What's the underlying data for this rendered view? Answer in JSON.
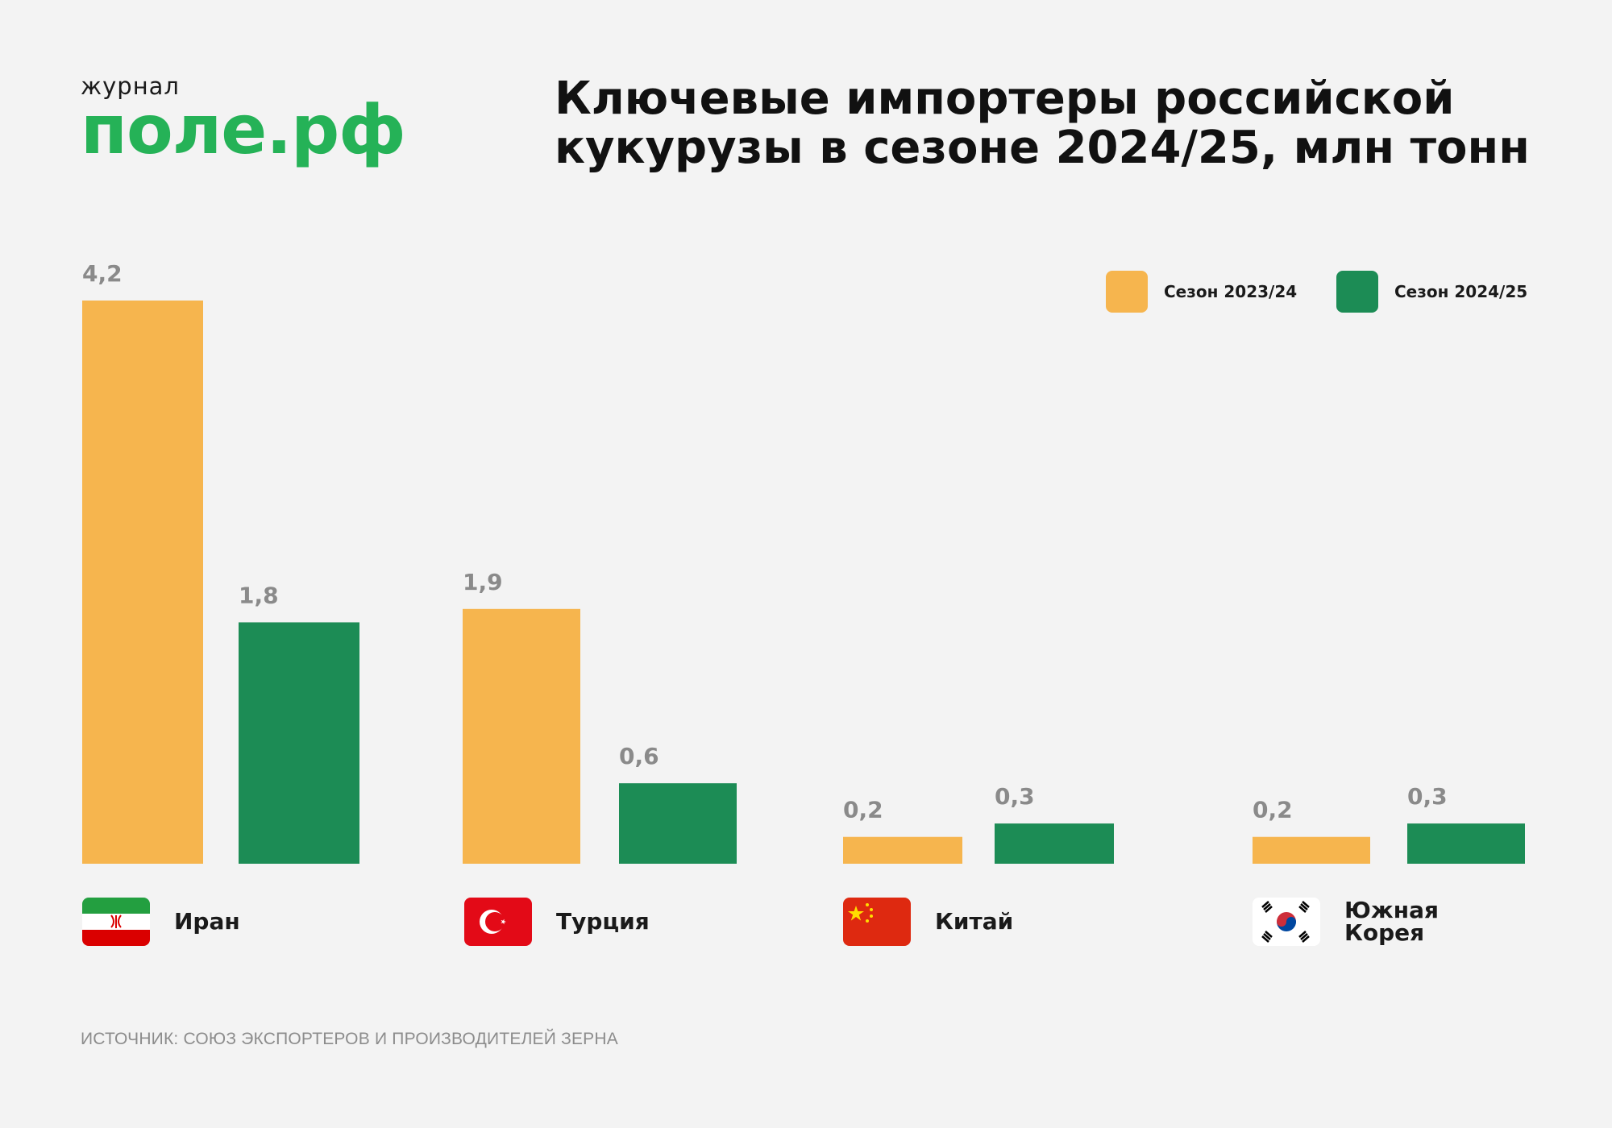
{
  "logo": {
    "small": "журнал",
    "big": "поле.рф"
  },
  "title_line1": "Ключевые импортеры российской",
  "title_line2": "кукурузы в сезоне 2024/25, млн тонн",
  "legend": [
    {
      "label": "Сезон 2023/24",
      "color": "#f6b54e"
    },
    {
      "label": "Сезон 2024/25",
      "color": "#1c8c55"
    }
  ],
  "countries": [
    {
      "name": "Иран",
      "flag": "iran-flag-icon"
    },
    {
      "name": "Турция",
      "flag": "turkey-flag-icon"
    },
    {
      "name": "Китай",
      "flag": "china-flag-icon"
    },
    {
      "name": "Южная Корея",
      "flag": "south-korea-flag-icon"
    }
  ],
  "source": "ИСТОЧНИК: СОЮЗ ЭКСПОРТЕРОВ И ПРОИЗВОДИТЕЛЕЙ ЗЕРНА",
  "chart_data": {
    "type": "bar",
    "title": "Ключевые импортеры российской кукурузы в сезоне 2024/25, млн тонн",
    "categories": [
      "Иран",
      "Турция",
      "Китай",
      "Южная Корея"
    ],
    "series": [
      {
        "name": "Сезон 2023/24",
        "values": [
          4.2,
          1.9,
          0.2,
          0.2
        ],
        "labels": [
          "4,2",
          "1,9",
          "0,2",
          "0,2"
        ],
        "color": "#f6b54e"
      },
      {
        "name": "Сезон 2024/25",
        "values": [
          1.8,
          0.6,
          0.3,
          0.3
        ],
        "labels": [
          "1,8",
          "0,6",
          "0,3",
          "0,3"
        ],
        "color": "#1c8c55"
      }
    ],
    "ylim": [
      0,
      4.2
    ],
    "grid": false,
    "legend_position": "top-right"
  }
}
